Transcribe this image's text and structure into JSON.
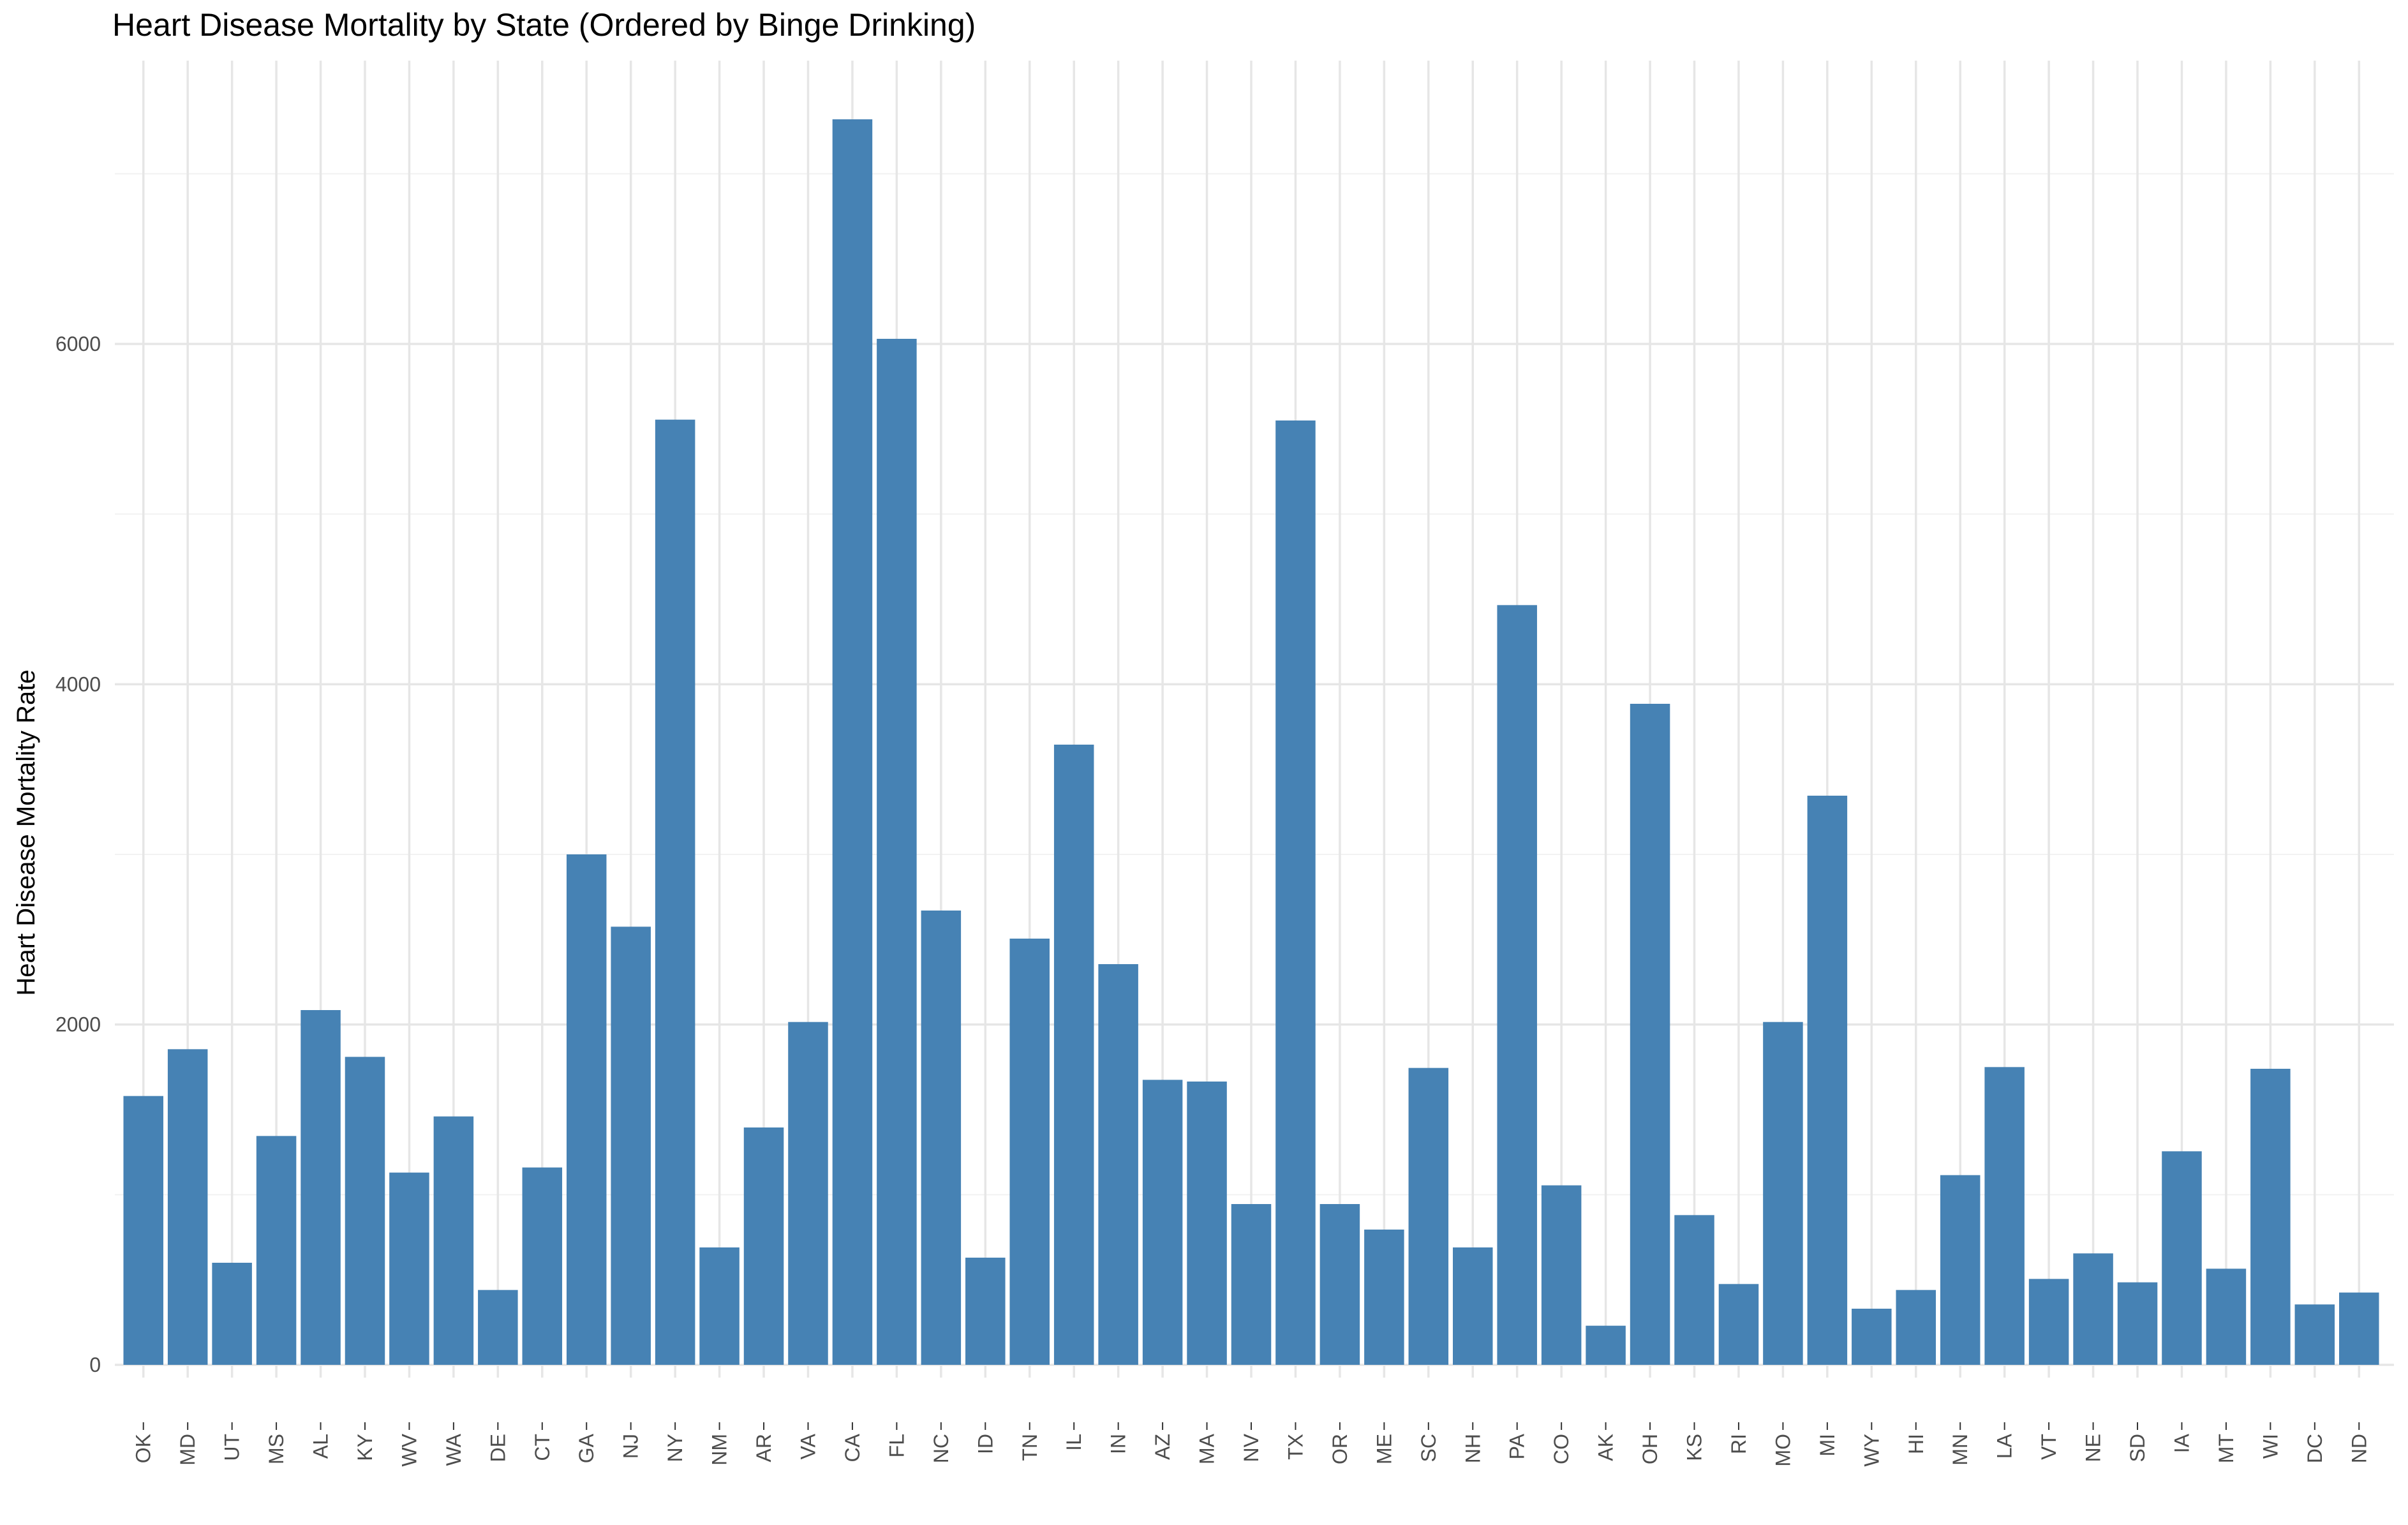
{
  "chart_data": {
    "type": "bar",
    "title": "Heart Disease Mortality by State (Ordered by Binge Drinking)",
    "xlabel": "",
    "ylabel": "Heart Disease Mortality Rate",
    "ylim": [
      0,
      7500
    ],
    "yticks": [
      0,
      2000,
      4000,
      6000
    ],
    "grid": true,
    "bar_color": "#4682B4",
    "categories": [
      "OK",
      "MD",
      "UT",
      "MS",
      "AL",
      "KY",
      "WV",
      "WA",
      "DE",
      "CT",
      "GA",
      "NJ",
      "NY",
      "NM",
      "AR",
      "VA",
      "CA",
      "FL",
      "NC",
      "ID",
      "TN",
      "IL",
      "IN",
      "AZ",
      "MA",
      "NV",
      "TX",
      "OR",
      "ME",
      "SC",
      "NH",
      "PA",
      "CO",
      "AK",
      "OH",
      "KS",
      "RI",
      "MO",
      "MI",
      "WY",
      "HI",
      "MN",
      "LA",
      "VT",
      "NE",
      "SD",
      "IA",
      "MT",
      "WI",
      "DC",
      "ND"
    ],
    "values": [
      1580,
      1855,
      600,
      1345,
      2085,
      1810,
      1130,
      1460,
      440,
      1160,
      3000,
      2575,
      5555,
      690,
      1395,
      2015,
      7320,
      6030,
      2670,
      630,
      2505,
      3645,
      2355,
      1675,
      1665,
      945,
      5550,
      945,
      795,
      1745,
      690,
      4465,
      1055,
      230,
      3885,
      880,
      475,
      2015,
      3345,
      330,
      440,
      1115,
      1750,
      505,
      655,
      485,
      1255,
      565,
      1740,
      355,
      425
    ]
  }
}
